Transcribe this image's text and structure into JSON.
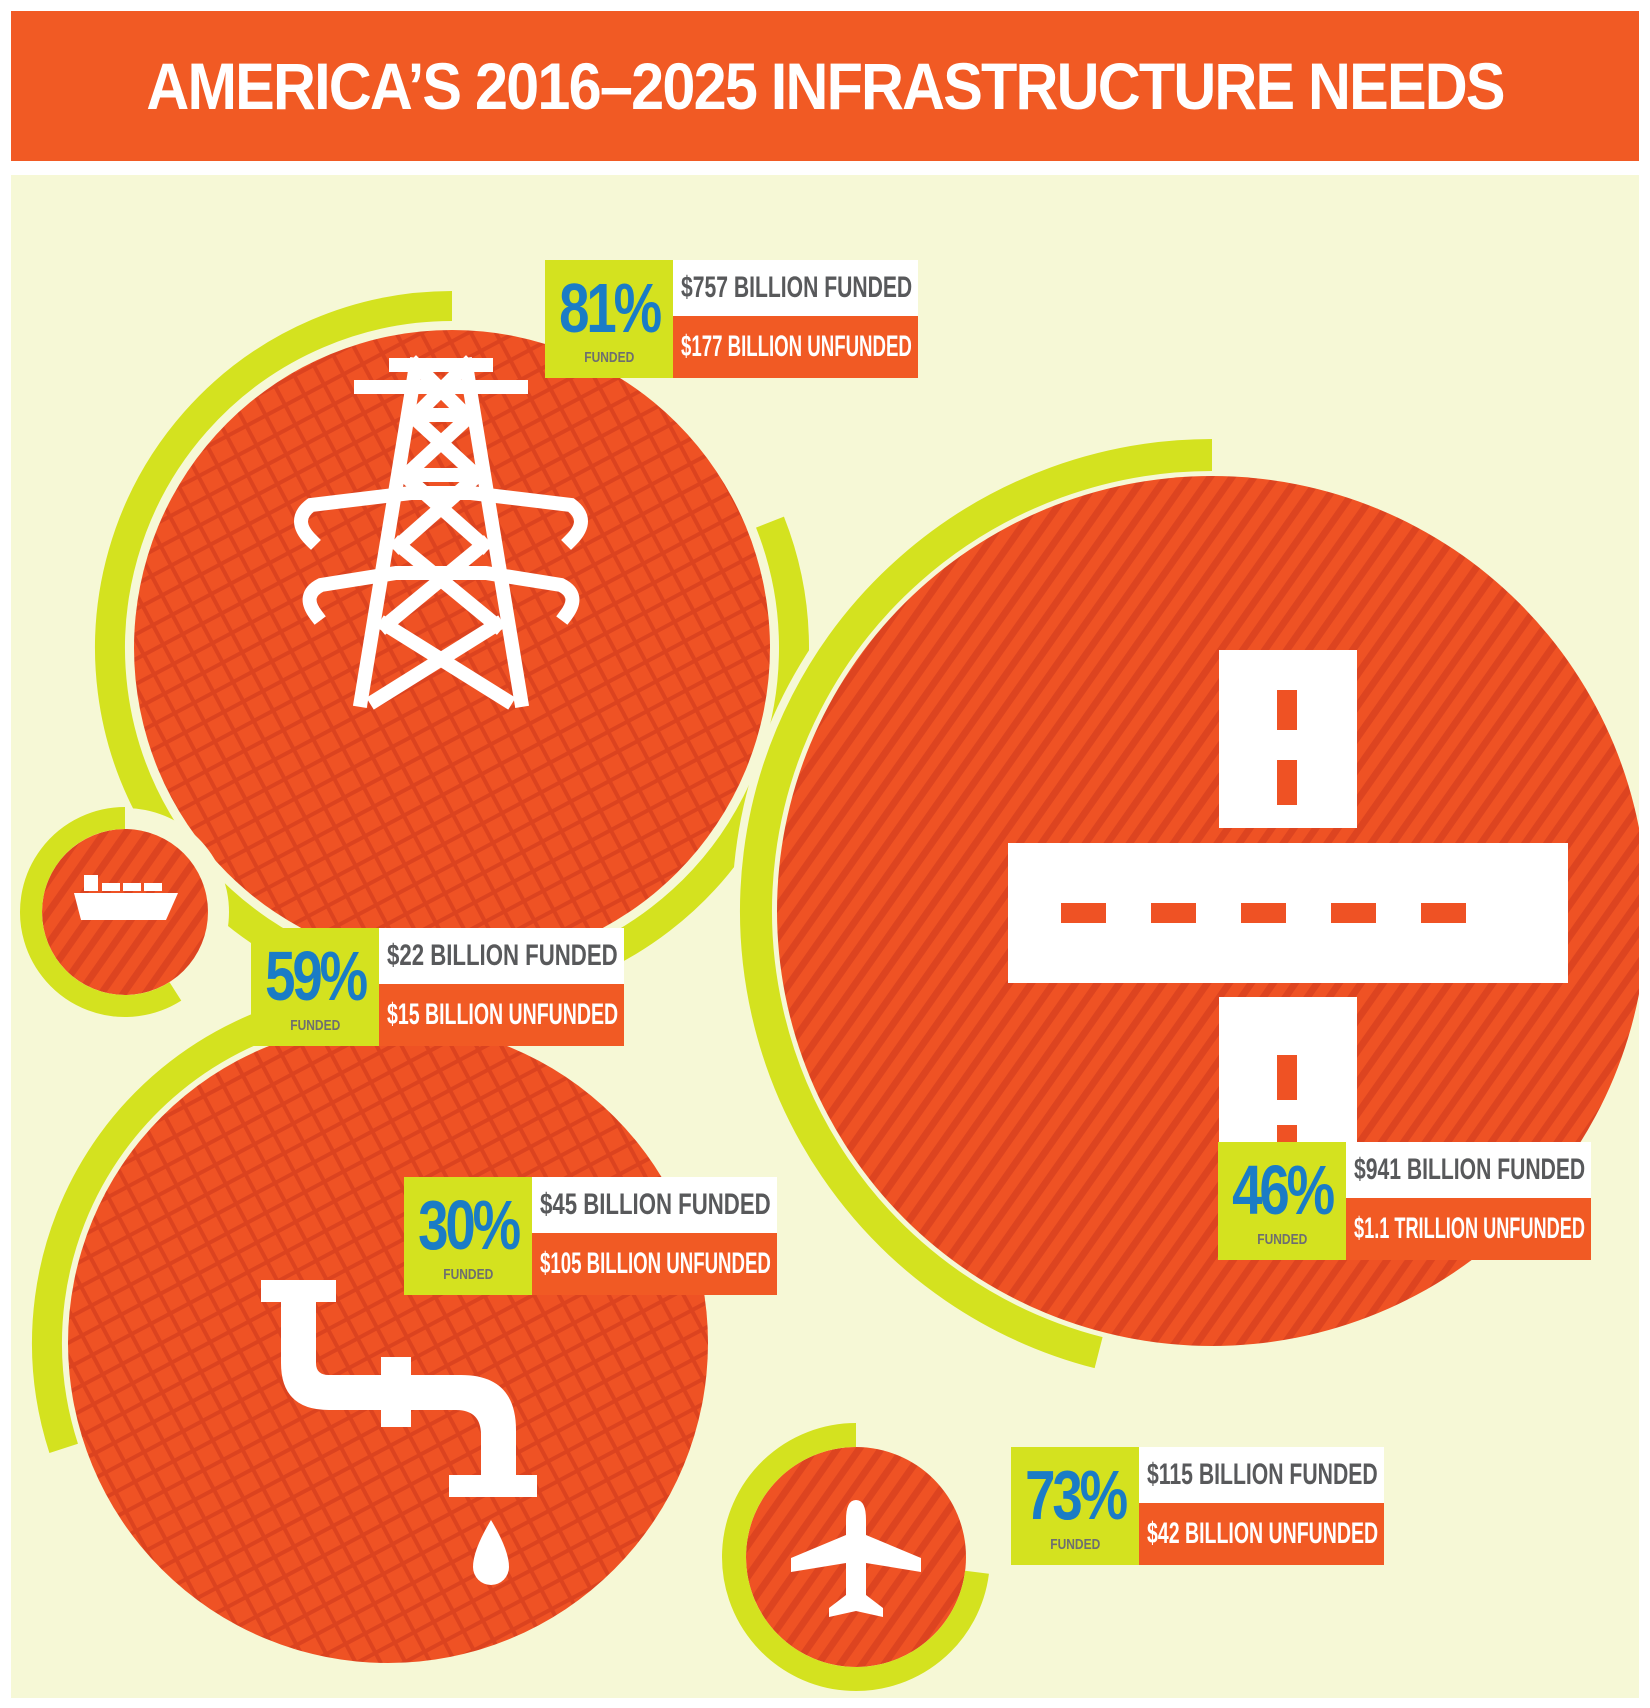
{
  "header": {
    "title": "AMERICA’S 2016–2025 INFRASTRUCTURE NEEDS"
  },
  "colors": {
    "banner": "#f15a24",
    "background": "#f6f8d6",
    "circle_fill": "#ef5224",
    "circle_dark": "#d9401f",
    "ring": "#d4e21f",
    "percent_text": "#1a7cc6",
    "funded_text": "#58595b",
    "unfunded_bg": "#f15a24"
  },
  "chart_data": {
    "type": "donut",
    "title": "AMERICA’S 2016–2025 INFRASTRUCTURE NEEDS",
    "series": [
      {
        "icon": "power-tower-icon",
        "percent_funded": 81,
        "percent_label": "81%",
        "sublabel": "FUNDED",
        "funded": "$757 BILLION FUNDED",
        "unfunded": "$177 BILLION UNFUNDED"
      },
      {
        "icon": "road-intersection-icon",
        "percent_funded": 46,
        "percent_label": "46%",
        "sublabel": "FUNDED",
        "funded": "$941 BILLION FUNDED",
        "unfunded": "$1.1 TRILLION UNFUNDED"
      },
      {
        "icon": "cargo-ship-icon",
        "percent_funded": 59,
        "percent_label": "59%",
        "sublabel": "FUNDED",
        "funded": "$22 BILLION FUNDED",
        "unfunded": "$15 BILLION UNFUNDED"
      },
      {
        "icon": "water-pipe-icon",
        "percent_funded": 30,
        "percent_label": "30%",
        "sublabel": "FUNDED",
        "funded": "$45 BILLION FUNDED",
        "unfunded": "$105 BILLION UNFUNDED"
      },
      {
        "icon": "airplane-icon",
        "percent_funded": 73,
        "percent_label": "73%",
        "sublabel": "FUNDED",
        "funded": "$115 BILLION FUNDED",
        "unfunded": "$42 BILLION UNFUNDED"
      }
    ]
  }
}
